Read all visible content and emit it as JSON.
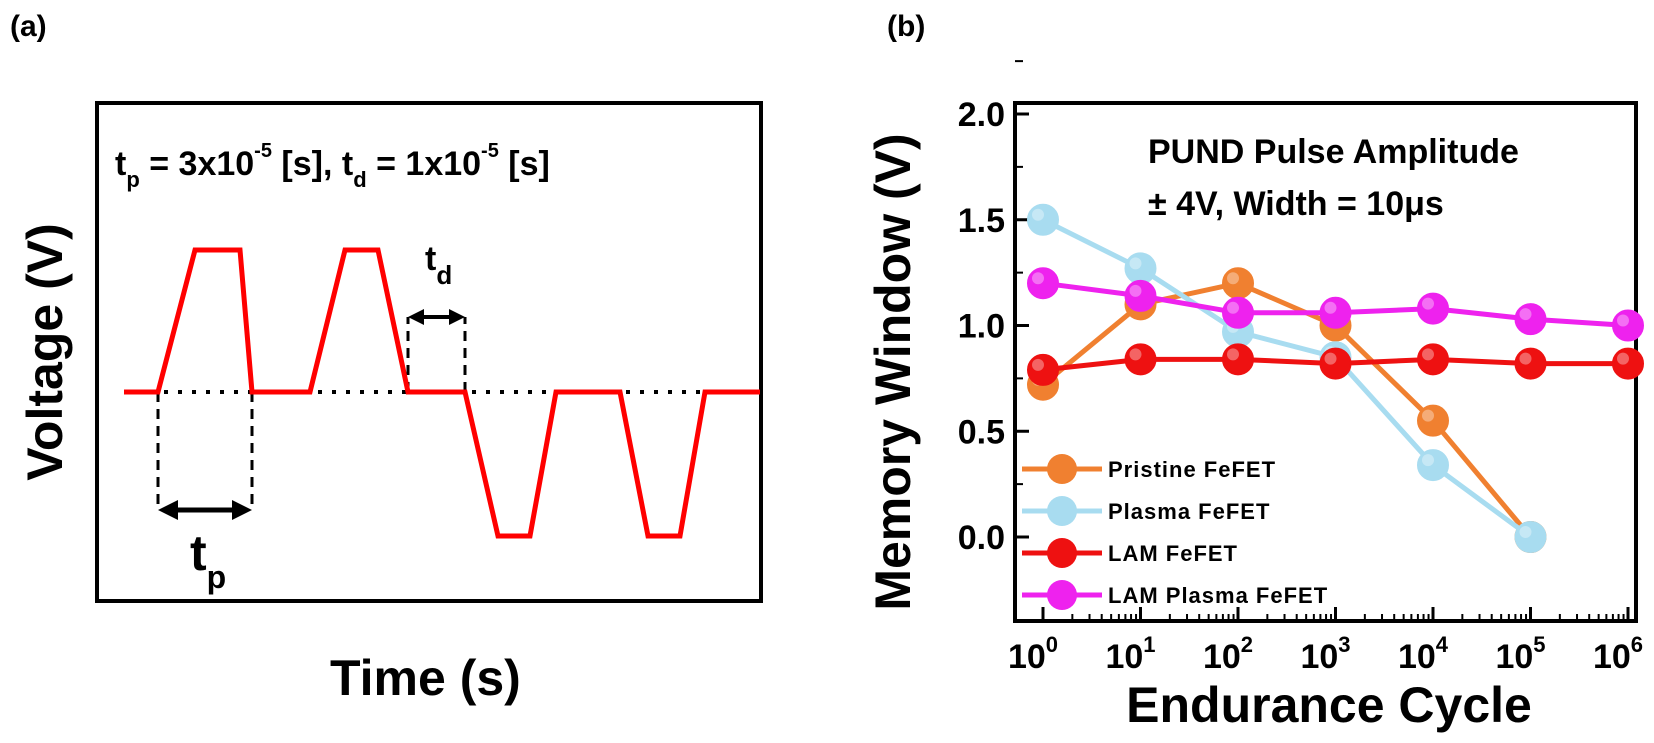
{
  "panel_a": {
    "label": "(a)",
    "formula": {
      "tp_sym": "t",
      "tp_sub": "p",
      "tp_eq": " = 3x10",
      "tp_exp": "-5",
      "tp_unit": " [s], ",
      "td_sym": "t",
      "td_sub": "d",
      "td_eq": " = 1x10",
      "td_exp": "-5",
      "td_unit": " [s]"
    },
    "tp_label": {
      "sym": "t",
      "sub": "p"
    },
    "td_label": {
      "sym": "t",
      "sub": "d"
    },
    "xlabel": "Time (s)",
    "ylabel": "Voltage (V)",
    "colors": {
      "pulse": "#ff0000",
      "baseline": "#000000"
    },
    "chart_data": {
      "type": "line",
      "title": "",
      "xlabel": "Time (s)",
      "ylabel": "Voltage (V)",
      "series": [
        {
          "name": "",
          "description_free": true,
          "x": [
            0,
            1,
            2,
            3,
            4,
            5,
            6,
            7,
            8,
            9,
            10,
            11,
            12,
            13,
            14,
            15,
            16,
            17,
            18,
            19,
            20,
            21,
            22,
            23,
            24,
            25
          ],
          "y": [
            0,
            0,
            1,
            1,
            0,
            0,
            1,
            1,
            0,
            0,
            -1,
            -1,
            0,
            0,
            -1,
            -1,
            0,
            0,
            0,
            0,
            0,
            0,
            0,
            0,
            0,
            0
          ]
        }
      ]
    }
  },
  "panel_b": {
    "label": "(b)",
    "annotation_line1": "PUND Pulse Amplitude",
    "annotation_line2": "± 4V, Width = 10μs",
    "chart_data": {
      "type": "line",
      "title": "",
      "xlabel": "Endurance Cycle",
      "ylabel": "Memory Window (V)",
      "x_scale": "log",
      "xlim": [
        1,
        1000000
      ],
      "ylim": [
        -0.4,
        2.0
      ],
      "yticks": [
        "0.0",
        "0.5",
        "1.0",
        "1.5",
        "2.0"
      ],
      "xticks": [
        {
          "base": "10",
          "exp": "0",
          "value": 1
        },
        {
          "base": "10",
          "exp": "1",
          "value": 10
        },
        {
          "base": "10",
          "exp": "2",
          "value": 100
        },
        {
          "base": "10",
          "exp": "3",
          "value": 1000
        },
        {
          "base": "10",
          "exp": "4",
          "value": 10000
        },
        {
          "base": "10",
          "exp": "5",
          "value": 100000
        },
        {
          "base": "10",
          "exp": "6",
          "value": 1000000
        }
      ],
      "legend_position": "bottom-left",
      "series": [
        {
          "name": "Pristine FeFET",
          "color": "#f08030",
          "x": [
            1,
            10,
            100,
            1000,
            10000,
            100000
          ],
          "y": [
            0.72,
            1.1,
            1.2,
            1.0,
            0.55,
            0.0
          ]
        },
        {
          "name": "Plasma FeFET",
          "color": "#a8dcf0",
          "x": [
            1,
            10,
            100,
            1000,
            10000,
            100000
          ],
          "y": [
            1.5,
            1.27,
            0.97,
            0.85,
            0.34,
            0.0
          ]
        },
        {
          "name": "LAM FeFET",
          "color": "#ee1111",
          "x": [
            1,
            10,
            100,
            1000,
            10000,
            100000,
            1000000
          ],
          "y": [
            0.79,
            0.84,
            0.84,
            0.82,
            0.84,
            0.82,
            0.82
          ]
        },
        {
          "name": "LAM Plasma FeFET",
          "color": "#ee22ee",
          "x": [
            1,
            10,
            100,
            1000,
            10000,
            100000,
            1000000
          ],
          "y": [
            1.2,
            1.14,
            1.06,
            1.06,
            1.08,
            1.03,
            1.0
          ]
        }
      ]
    }
  }
}
